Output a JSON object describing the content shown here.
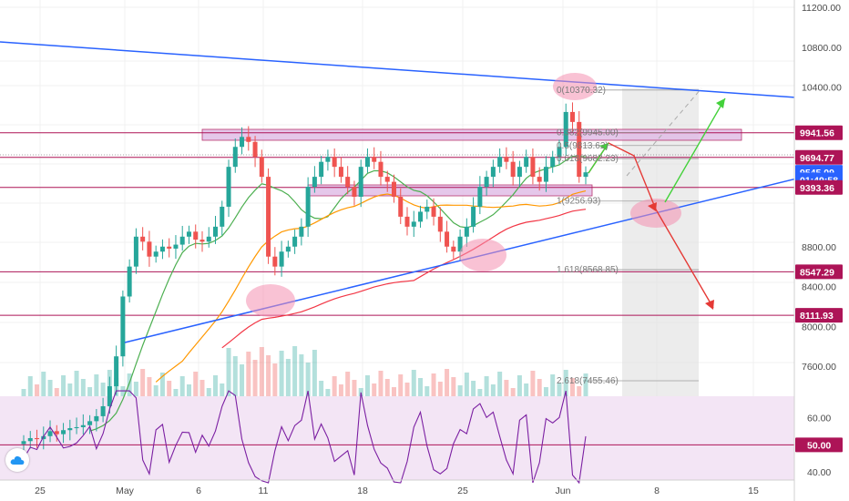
{
  "colors": {
    "up": "#26a69a",
    "down": "#ef5350",
    "ma_green": "#4caf50",
    "ma_orange": "#ff9800",
    "ma_red": "#f23645",
    "trend_blue": "#2962ff",
    "hline": "#ad1457",
    "zone": "#e1bee7",
    "rsi_line": "#7b1fa2",
    "rsi_bg": "#f3e5f5",
    "badge": "#ad1457",
    "badge_blue": "#2962ff"
  },
  "price_axis": {
    "ticks": [
      "11200.00",
      "10800.00",
      "10400.00",
      "8800.00",
      "8400.00",
      "8000.00",
      "7600.00"
    ],
    "badges": [
      {
        "value": 9941.56,
        "label": "9941.56",
        "kind": "level"
      },
      {
        "value": 9694.77,
        "label": "9694.77",
        "kind": "level"
      },
      {
        "value": 9545.09,
        "label": "9545.09",
        "kind": "last"
      },
      {
        "value": 9470,
        "label": "01:49:58",
        "kind": "countdown"
      },
      {
        "value": 9393.36,
        "label": "9393.36",
        "kind": "level"
      },
      {
        "value": 8547.29,
        "label": "8547.29",
        "kind": "level"
      },
      {
        "value": 8111.93,
        "label": "8111.93",
        "kind": "level"
      }
    ]
  },
  "rsi_axis": {
    "ticks": [
      "60.00",
      "40.00"
    ],
    "badge": "50.00"
  },
  "time_axis": {
    "labels": [
      "25",
      "May",
      "6",
      "11",
      "18",
      "25",
      "Jun",
      "8",
      "15"
    ]
  },
  "fib_labels": [
    {
      "text": "0(10370.32)"
    },
    {
      "text": "0.382(9945.00)"
    },
    {
      "text": "0.5(9813.62)"
    },
    {
      "text": "0.618(9682.23)"
    },
    {
      "text": "1(9256.93)"
    },
    {
      "text": "1.618(8568.85)"
    },
    {
      "text": "2.618(7455.46)"
    }
  ],
  "chart_data": {
    "type": "candlestick",
    "symbol_note": "daily/4h candles with MA, RSI, fib projection",
    "x_start": "2020-04-21",
    "closes": [
      6850,
      6880,
      6870,
      6900,
      6950,
      6920,
      6960,
      6980,
      6990,
      7010,
      7050,
      7100,
      7200,
      7400,
      7700,
      8300,
      8600,
      8900,
      8850,
      8700,
      8750,
      8800,
      8780,
      8820,
      8900,
      8950,
      8870,
      8850,
      8900,
      9000,
      9200,
      9600,
      9800,
      9900,
      9850,
      9700,
      9500,
      8700,
      8600,
      8750,
      8800,
      8900,
      9000,
      9400,
      9500,
      9650,
      9700,
      9600,
      9500,
      9400,
      9300,
      9600,
      9700,
      9650,
      9500,
      9450,
      9300,
      9100,
      9000,
      9050,
      9150,
      9200,
      9100,
      8950,
      8800,
      8750,
      8900,
      9000,
      9200,
      9400,
      9500,
      9600,
      9700,
      9650,
      9500,
      9600,
      9700,
      9500,
      9450,
      9600,
      9700,
      9800,
      10150,
      10050,
      9500,
      9545
    ],
    "moving_averages": [
      {
        "name": "MA50",
        "color": "green"
      },
      {
        "name": "MA100",
        "color": "orange"
      },
      {
        "name": "MA200",
        "color": "red"
      }
    ],
    "horizontal_levels": [
      9941.56,
      9694.77,
      9393.36,
      8547.29,
      8111.93
    ],
    "fib_levels": [
      10370.32,
      9945.0,
      9813.62,
      9682.23,
      9256.93,
      8568.85,
      7455.46
    ],
    "y_range": [
      7300,
      11280
    ],
    "rsi_range": [
      37,
      68
    ],
    "rsi_reference": 50
  }
}
